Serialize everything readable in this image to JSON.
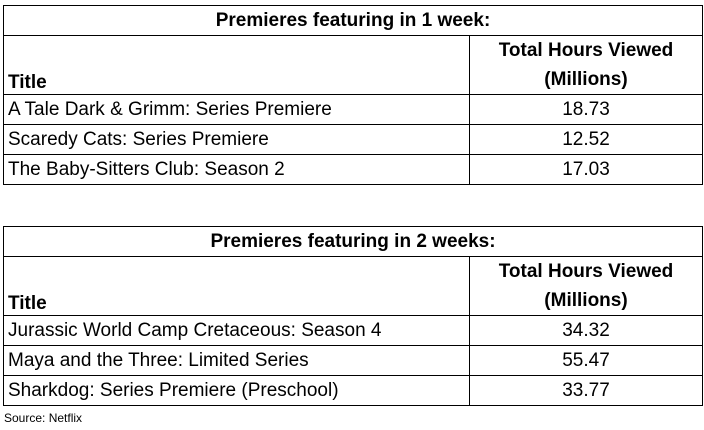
{
  "tables": [
    {
      "caption": "Premieres featuring in 1 week:",
      "col_title": "Title",
      "col_value_line1": "Total Hours Viewed",
      "col_value_line2": "(Millions)",
      "rows": [
        {
          "title": "A Tale Dark & Grimm: Series Premiere",
          "value": "18.73"
        },
        {
          "title": "Scaredy Cats: Series Premiere",
          "value": "12.52"
        },
        {
          "title": "The Baby-Sitters Club: Season 2",
          "value": "17.03"
        }
      ]
    },
    {
      "caption": "Premieres featuring in 2 weeks:",
      "col_title": "Title",
      "col_value_line1": "Total Hours Viewed",
      "col_value_line2": "(Millions)",
      "rows": [
        {
          "title": "Jurassic World Camp Cretaceous: Season 4",
          "value": "34.32"
        },
        {
          "title": "Maya and the Three: Limited Series",
          "value": "55.47"
        },
        {
          "title": "Sharkdog: Series Premiere (Preschool)",
          "value": "33.77"
        }
      ]
    }
  ],
  "source": "Source:  Netflix"
}
